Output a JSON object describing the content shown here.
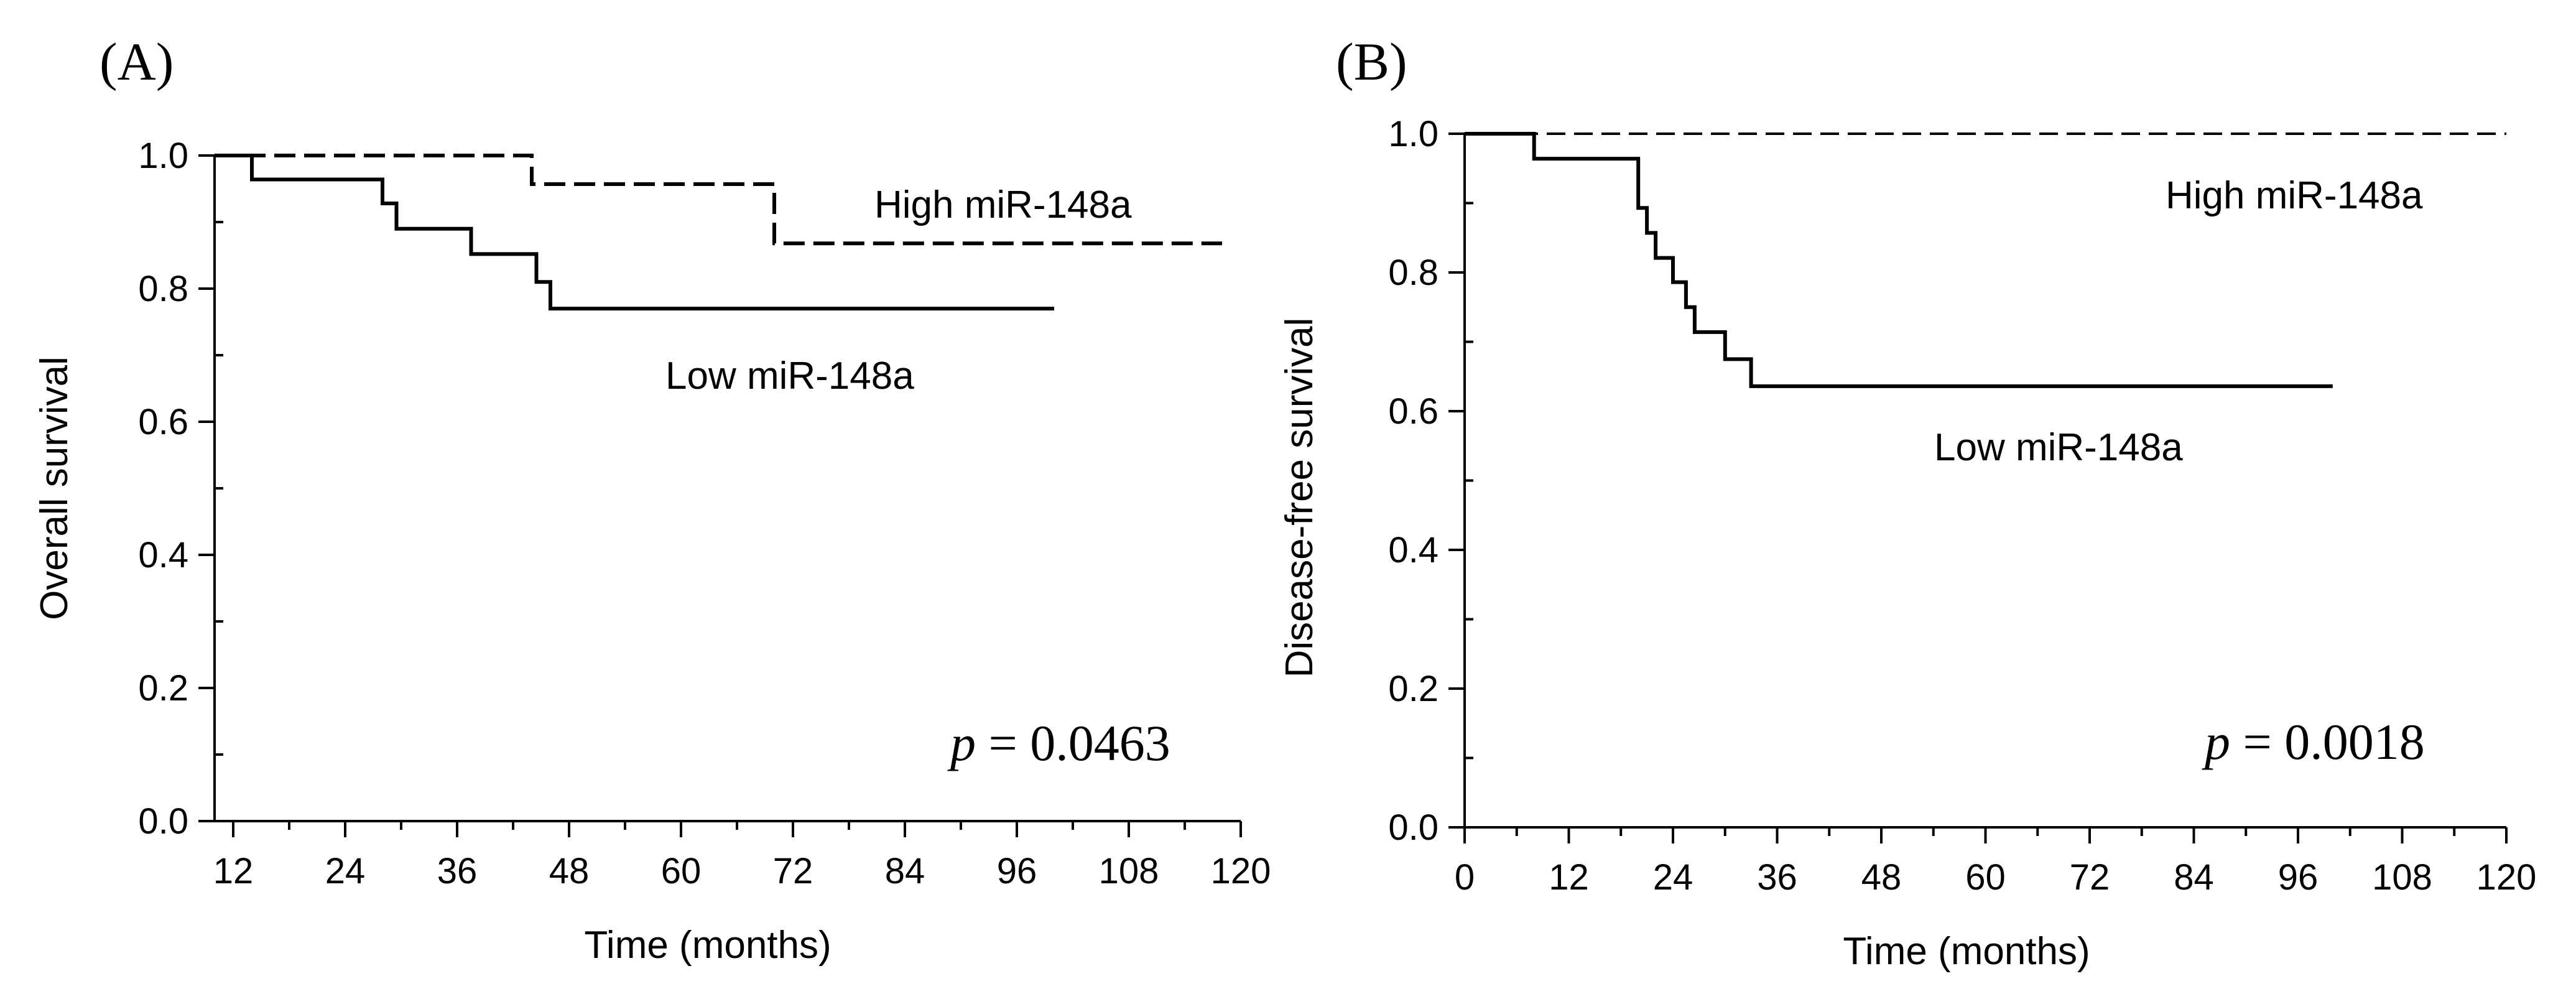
{
  "chart_data": [
    {
      "type": "line",
      "step": true,
      "panel_label": "(A)",
      "xlabel": "Time (months)",
      "ylabel": "Overall survival",
      "xlim": [
        10,
        120
      ],
      "ylim": [
        0.0,
        1.0
      ],
      "xticks": [
        12,
        24,
        36,
        48,
        60,
        72,
        84,
        96,
        108,
        120
      ],
      "yticks": [
        0.0,
        0.2,
        0.4,
        0.6,
        0.8,
        1.0
      ],
      "xtick_labels": [
        "12",
        "24",
        "36",
        "48",
        "60",
        "72",
        "84",
        "96",
        "108",
        "120"
      ],
      "ytick_labels": [
        "0.0",
        "0.2",
        "0.4",
        "0.6",
        "0.8",
        "1.0"
      ],
      "series": [
        {
          "name": "High miR-148a",
          "label": "High miR-148a",
          "style": "dashed",
          "x": [
            10,
            44,
            44,
            70,
            70,
            118
          ],
          "y": [
            1.0,
            1.0,
            0.957,
            0.957,
            0.868,
            0.868
          ]
        },
        {
          "name": "Low miR-148a",
          "label": "Low miR-148a",
          "style": "solid",
          "x": [
            10,
            14,
            14,
            28,
            28,
            29.5,
            29.5,
            37.5,
            37.5,
            44.5,
            44.5,
            46,
            46,
            100
          ],
          "y": [
            1.0,
            1.0,
            0.964,
            0.964,
            0.928,
            0.928,
            0.89,
            0.89,
            0.852,
            0.852,
            0.81,
            0.81,
            0.77,
            0.77
          ]
        }
      ],
      "annotation": {
        "italic": "p",
        "rest": " = 0.0463"
      }
    },
    {
      "type": "line",
      "step": true,
      "panel_label": "(B)",
      "xlabel": "Time (months)",
      "ylabel": "Disease-free survival",
      "xlim": [
        0,
        120
      ],
      "ylim": [
        0.0,
        1.0
      ],
      "xticks": [
        0,
        12,
        24,
        36,
        48,
        60,
        72,
        84,
        96,
        108,
        120
      ],
      "yticks": [
        0.0,
        0.2,
        0.4,
        0.6,
        0.8,
        1.0
      ],
      "xtick_labels": [
        "0",
        "12",
        "24",
        "36",
        "48",
        "60",
        "72",
        "84",
        "96",
        "108",
        "120"
      ],
      "ytick_labels": [
        "0.0",
        "0.2",
        "0.4",
        "0.6",
        "0.8",
        "1.0"
      ],
      "series": [
        {
          "name": "High miR-148a",
          "label": "High miR-148a",
          "style": "dashed",
          "x": [
            0,
            120
          ],
          "y": [
            1.0,
            1.0
          ]
        },
        {
          "name": "Low miR-148a",
          "label": "Low miR-148a",
          "style": "solid",
          "x": [
            0,
            8,
            8,
            20,
            20,
            21,
            21,
            22,
            22,
            24,
            24,
            25.5,
            25.5,
            26.5,
            26.5,
            30,
            30,
            33,
            33,
            40,
            40,
            100
          ],
          "y": [
            1.0,
            1.0,
            0.964,
            0.964,
            0.893,
            0.893,
            0.857,
            0.857,
            0.821,
            0.821,
            0.786,
            0.786,
            0.75,
            0.75,
            0.714,
            0.714,
            0.675,
            0.675,
            0.636,
            0.636,
            0.636,
            0.636
          ]
        }
      ],
      "annotation": {
        "italic": "p",
        "rest": " = 0.0018"
      }
    }
  ]
}
